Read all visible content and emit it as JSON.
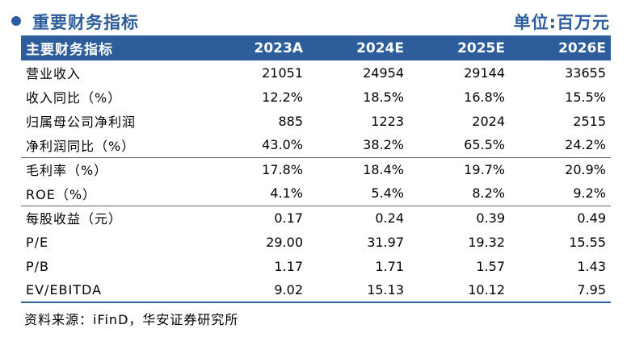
{
  "header": {
    "title": "重要财务指标",
    "unit": "单位:百万元"
  },
  "table": {
    "columns": [
      "主要财务指标",
      "2023A",
      "2024E",
      "2025E",
      "2026E"
    ],
    "rows": [
      {
        "label": "营业收入",
        "values": [
          "21051",
          "24954",
          "29144",
          "33655"
        ]
      },
      {
        "label": "收入同比（%）",
        "values": [
          "12.2%",
          "18.5%",
          "16.8%",
          "15.5%"
        ]
      },
      {
        "label": "归属母公司净利润",
        "values": [
          "885",
          "1223",
          "2024",
          "2515"
        ]
      },
      {
        "label": "净利润同比（%）",
        "values": [
          "43.0%",
          "38.2%",
          "65.5%",
          "24.2%"
        ]
      },
      {
        "label": "毛利率（%）",
        "values": [
          "17.8%",
          "18.4%",
          "19.7%",
          "20.9%"
        ]
      },
      {
        "label": "ROE（%）",
        "values": [
          "4.1%",
          "5.4%",
          "8.2%",
          "9.2%"
        ]
      },
      {
        "label": "每股收益（元）",
        "values": [
          "0.17",
          "0.24",
          "0.39",
          "0.49"
        ]
      },
      {
        "label": "P/E",
        "values": [
          "29.00",
          "31.97",
          "19.32",
          "15.55"
        ]
      },
      {
        "label": "P/B",
        "values": [
          "1.17",
          "1.71",
          "1.57",
          "1.43"
        ]
      },
      {
        "label": "EV/EBITDA",
        "values": [
          "9.02",
          "15.13",
          "10.12",
          "7.95"
        ]
      }
    ]
  },
  "footer": {
    "source": "资料来源：iFinD，华安证券研究所"
  },
  "colors": {
    "accent": "#2d5d9b"
  }
}
